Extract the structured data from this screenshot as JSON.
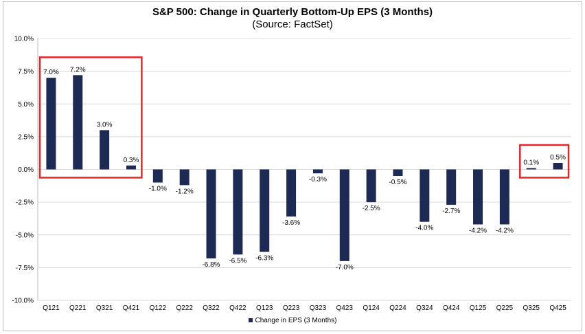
{
  "chart_data": {
    "type": "bar",
    "title": "S&P 500: Change in Quarterly Bottom-Up EPS (3 Months)",
    "subtitle": "(Source: FactSet)",
    "categories": [
      "Q121",
      "Q221",
      "Q321",
      "Q421",
      "Q122",
      "Q222",
      "Q322",
      "Q422",
      "Q123",
      "Q223",
      "Q323",
      "Q423",
      "Q124",
      "Q224",
      "Q324",
      "Q424",
      "Q125",
      "Q225",
      "Q325",
      "Q425"
    ],
    "series": [
      {
        "name": "Change in EPS (3 Months)",
        "values": [
          7.0,
          7.2,
          3.0,
          0.3,
          -1.0,
          -1.2,
          -6.8,
          -6.5,
          -6.3,
          -3.6,
          -0.3,
          -7.0,
          -2.5,
          -0.5,
          -4.0,
          -2.7,
          -4.2,
          -4.2,
          0.1,
          0.5
        ],
        "labels": [
          "7.0%",
          "7.2%",
          "3.0%",
          "0.3%",
          "-1.0%",
          "-1.2%",
          "-6.8%",
          "-6.5%",
          "-6.3%",
          "-3.6%",
          "-0.3%",
          "-7.0%",
          "-2.5%",
          "-0.5%",
          "-4.0%",
          "-2.7%",
          "-4.2%",
          "-4.2%",
          "0.1%",
          "0.5%"
        ]
      }
    ],
    "yticks": [
      "10.0%",
      "7.5%",
      "5.0%",
      "2.5%",
      "0.0%",
      "-2.5%",
      "-5.0%",
      "-7.5%",
      "-10.0%"
    ],
    "ylim": [
      -10,
      10
    ],
    "grid": true,
    "legend_position": "bottom",
    "bar_color": "#1c2a54",
    "highlight_color": "#e0282b",
    "highlight_groups": [
      [
        "Q121",
        "Q421"
      ],
      [
        "Q325",
        "Q425"
      ]
    ]
  }
}
